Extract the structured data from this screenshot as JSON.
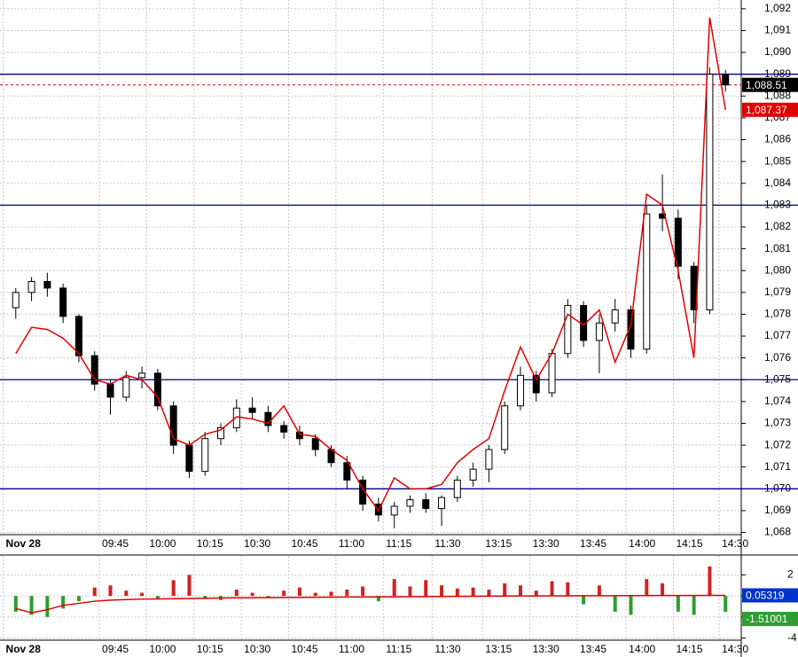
{
  "chart_data": [
    {
      "type": "candlestick",
      "xlim": [
        -1,
        46
      ],
      "xticks": [
        {
          "value": -0.8,
          "label": "Nov 28"
        },
        {
          "value": 5.3,
          "label": "09:45"
        },
        {
          "value": 8.3,
          "label": "10:00"
        },
        {
          "value": 11.3,
          "label": "10:15"
        },
        {
          "value": 14.3,
          "label": "10:30"
        },
        {
          "value": 17.3,
          "label": "10:45"
        },
        {
          "value": 20.3,
          "label": "11:00"
        },
        {
          "value": 23.3,
          "label": "11:15"
        },
        {
          "value": 26.4,
          "label": "11:30"
        },
        {
          "value": 29.6,
          "label": "13:15"
        },
        {
          "value": 32.6,
          "label": "13:30"
        },
        {
          "value": 35.6,
          "label": "13:45"
        },
        {
          "value": 38.7,
          "label": "14:00"
        },
        {
          "value": 41.7,
          "label": "14:15"
        },
        {
          "value": 44.6,
          "label": "14:30"
        }
      ],
      "ylim": [
        1067.9,
        1092.4
      ],
      "yticks": [
        {
          "value": 1068,
          "label": "1,068"
        },
        {
          "value": 1069,
          "label": "1,069"
        },
        {
          "value": 1070,
          "label": "1,070"
        },
        {
          "value": 1071,
          "label": "1,071"
        },
        {
          "value": 1072,
          "label": "1,072"
        },
        {
          "value": 1073,
          "label": "1,073"
        },
        {
          "value": 1074,
          "label": "1,074"
        },
        {
          "value": 1075,
          "label": "1,075"
        },
        {
          "value": 1076,
          "label": "1,076"
        },
        {
          "value": 1077,
          "label": "1,077"
        },
        {
          "value": 1078,
          "label": "1,078"
        },
        {
          "value": 1079,
          "label": "1,079"
        },
        {
          "value": 1080,
          "label": "1,080"
        },
        {
          "value": 1081,
          "label": "1,081"
        },
        {
          "value": 1082,
          "label": "1,082"
        },
        {
          "value": 1083,
          "label": "1,083"
        },
        {
          "value": 1084,
          "label": "1,084"
        },
        {
          "value": 1085,
          "label": "1,085"
        },
        {
          "value": 1086,
          "label": "1,086"
        },
        {
          "value": 1087,
          "label": "1,087"
        },
        {
          "value": 1088,
          "label": "1,088"
        },
        {
          "value": 1089,
          "label": "1,089"
        },
        {
          "value": 1090,
          "label": "1,090"
        },
        {
          "value": 1091,
          "label": "1,091"
        },
        {
          "value": 1092,
          "label": "1,092"
        }
      ],
      "grid": true,
      "up_color": "#ffffff",
      "down_color": "#000000",
      "ohlc": [
        [
          1078.3,
          1079.2,
          1077.8,
          1079.0
        ],
        [
          1079.0,
          1079.7,
          1078.6,
          1079.5
        ],
        [
          1079.5,
          1079.9,
          1078.8,
          1079.2
        ],
        [
          1079.2,
          1079.4,
          1077.6,
          1077.9
        ],
        [
          1077.9,
          1078.0,
          1075.8,
          1076.1
        ],
        [
          1076.1,
          1076.3,
          1074.5,
          1074.8
        ],
        [
          1074.8,
          1075.0,
          1073.4,
          1074.2
        ],
        [
          1074.2,
          1075.4,
          1074.0,
          1075.1
        ],
        [
          1075.1,
          1075.6,
          1074.6,
          1075.3
        ],
        [
          1075.3,
          1075.5,
          1073.6,
          1073.8
        ],
        [
          1073.8,
          1074.0,
          1071.6,
          1072.0
        ],
        [
          1072.0,
          1072.2,
          1070.5,
          1070.8
        ],
        [
          1070.8,
          1072.6,
          1070.6,
          1072.3
        ],
        [
          1072.3,
          1073.0,
          1072.0,
          1072.8
        ],
        [
          1072.8,
          1074.1,
          1072.6,
          1073.7
        ],
        [
          1073.7,
          1074.2,
          1073.2,
          1073.5
        ],
        [
          1073.5,
          1073.8,
          1072.6,
          1072.9
        ],
        [
          1072.9,
          1073.1,
          1072.3,
          1072.6
        ],
        [
          1072.6,
          1072.9,
          1072.0,
          1072.3
        ],
        [
          1072.3,
          1072.5,
          1071.5,
          1071.8
        ],
        [
          1071.8,
          1072.0,
          1071.0,
          1071.2
        ],
        [
          1071.2,
          1071.5,
          1070.0,
          1070.4
        ],
        [
          1070.4,
          1070.6,
          1069.0,
          1069.3
        ],
        [
          1069.3,
          1069.6,
          1068.5,
          1068.8
        ],
        [
          1068.8,
          1069.4,
          1068.2,
          1069.2
        ],
        [
          1069.2,
          1069.7,
          1068.9,
          1069.5
        ],
        [
          1069.5,
          1069.8,
          1068.9,
          1069.1
        ],
        [
          1069.1,
          1069.7,
          1068.3,
          1069.6
        ],
        [
          1069.6,
          1070.6,
          1069.4,
          1070.4
        ],
        [
          1070.4,
          1071.2,
          1070.1,
          1070.9
        ],
        [
          1070.9,
          1072.0,
          1070.3,
          1071.8
        ],
        [
          1071.8,
          1074.0,
          1071.6,
          1073.8
        ],
        [
          1073.8,
          1075.6,
          1073.6,
          1075.2
        ],
        [
          1075.2,
          1075.4,
          1074.0,
          1074.4
        ],
        [
          1074.4,
          1076.4,
          1074.2,
          1076.2
        ],
        [
          1076.2,
          1078.7,
          1076.0,
          1078.4
        ],
        [
          1078.4,
          1078.6,
          1076.5,
          1076.8
        ],
        [
          1076.8,
          1078.0,
          1075.3,
          1077.6
        ],
        [
          1077.6,
          1078.7,
          1077.2,
          1078.2
        ],
        [
          1078.2,
          1078.4,
          1076.0,
          1076.4
        ],
        [
          1076.4,
          1083.0,
          1076.2,
          1082.6
        ],
        [
          1082.6,
          1084.4,
          1081.8,
          1082.4
        ],
        [
          1082.4,
          1082.8,
          1079.6,
          1080.2
        ],
        [
          1080.2,
          1080.4,
          1077.6,
          1078.2
        ],
        [
          1078.2,
          1089.3,
          1078.0,
          1089.0
        ],
        [
          1089.0,
          1089.2,
          1088.2,
          1088.51
        ]
      ],
      "last_label": "1,088.51",
      "line": {
        "color": "#e00000",
        "last_label": "1,087.37",
        "values": [
          1076.2,
          1077.4,
          1077.3,
          1076.9,
          1076.2,
          1075.0,
          1074.8,
          1075.2,
          1075.0,
          1074.2,
          1072.3,
          1072.0,
          1072.5,
          1072.7,
          1073.3,
          1073.2,
          1073.0,
          1073.8,
          1072.5,
          1072.4,
          1071.8,
          1071.3,
          1070.0,
          1069.0,
          1070.5,
          1070.0,
          1070.0,
          1070.2,
          1071.2,
          1071.8,
          1072.3,
          1074.5,
          1076.5,
          1075.0,
          1076.2,
          1078.0,
          1077.5,
          1078.2,
          1075.8,
          1077.5,
          1083.5,
          1083.0,
          1080.0,
          1076.0,
          1091.6,
          1087.37
        ]
      },
      "hlines": {
        "color": "#00008b",
        "values": [
          1089,
          1083,
          1075,
          1070
        ]
      }
    },
    {
      "type": "bar",
      "xlim": [
        -1,
        46
      ],
      "ylim": [
        -4.2,
        3.8
      ],
      "yticks": [
        -4,
        -2,
        0,
        2
      ],
      "pos_color": "#d42020",
      "neg_color": "#2e9e2e",
      "values": [
        -1.5,
        -1.8,
        -2.0,
        -1.2,
        -0.5,
        0.8,
        1.0,
        0.5,
        0.3,
        -0.3,
        1.5,
        2.0,
        -0.3,
        -0.4,
        0.6,
        0.3,
        -0.2,
        0.5,
        0.8,
        0.3,
        0.4,
        0.6,
        0.9,
        -0.5,
        1.6,
        0.9,
        1.5,
        1.0,
        0.7,
        0.8,
        0.6,
        1.2,
        1.0,
        0.5,
        1.4,
        1.3,
        -0.8,
        1.0,
        -1.5,
        -1.8,
        1.6,
        1.2,
        -1.5,
        -1.8,
        2.8,
        -1.51001
      ],
      "line": {
        "color": "#e00000",
        "label_color": "#0033cc",
        "values": [
          -1.2,
          -1.6,
          -1.3,
          -0.9,
          -0.7,
          -0.5,
          -0.4,
          -0.35,
          -0.3,
          -0.28,
          -0.26,
          -0.24,
          -0.22,
          -0.2,
          -0.18,
          -0.17,
          -0.16,
          -0.15,
          -0.14,
          -0.13,
          -0.12,
          -0.11,
          -0.1,
          -0.09,
          -0.08,
          -0.07,
          -0.06,
          -0.05,
          -0.04,
          -0.03,
          -0.02,
          -0.01,
          0,
          0,
          0.01,
          0.01,
          0.02,
          0.02,
          0.02,
          0.03,
          0.03,
          0.04,
          0.04,
          0.04,
          0.05,
          0.05319
        ]
      }
    }
  ]
}
